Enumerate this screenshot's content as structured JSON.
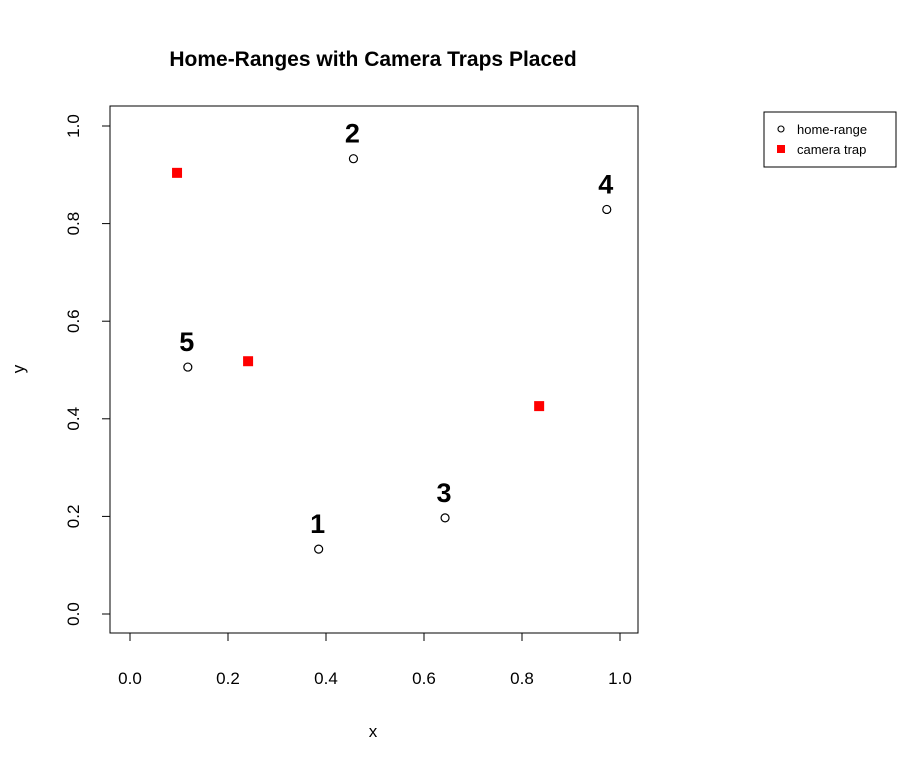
{
  "chart_data": {
    "type": "scatter",
    "title": "Home-Ranges with Camera Traps Placed",
    "xlabel": "x",
    "ylabel": "y",
    "xlim": [
      0,
      1
    ],
    "ylim": [
      0,
      1
    ],
    "x_ticks": [
      "0.0",
      "0.2",
      "0.4",
      "0.6",
      "0.8",
      "1.0"
    ],
    "y_ticks": [
      "0.0",
      "0.2",
      "0.4",
      "0.6",
      "0.8",
      "1.0"
    ],
    "grid": false,
    "legend_position": "outside-top-right",
    "series": [
      {
        "name": "home-range",
        "marker": "open-circle",
        "color": "#000000",
        "points": [
          {
            "label": "1",
            "x": 0.385,
            "y": 0.133
          },
          {
            "label": "2",
            "x": 0.456,
            "y": 0.933
          },
          {
            "label": "3",
            "x": 0.643,
            "y": 0.197
          },
          {
            "label": "4",
            "x": 0.973,
            "y": 0.829
          },
          {
            "label": "5",
            "x": 0.118,
            "y": 0.506
          }
        ]
      },
      {
        "name": "camera trap",
        "marker": "filled-square",
        "color": "#ff0000",
        "points": [
          {
            "x": 0.096,
            "y": 0.904
          },
          {
            "x": 0.241,
            "y": 0.518
          },
          {
            "x": 0.835,
            "y": 0.426
          }
        ]
      }
    ]
  }
}
